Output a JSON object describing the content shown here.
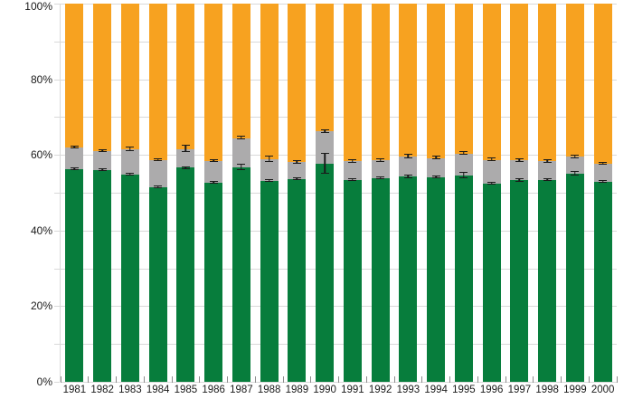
{
  "chart_data": {
    "type": "bar",
    "stacked": true,
    "title": "",
    "legend": "none",
    "grid": true,
    "categories": [
      "1981",
      "1982",
      "1983",
      "1984",
      "1985",
      "1986",
      "1987",
      "1988",
      "1989",
      "1990",
      "1991",
      "1992",
      "1993",
      "1994",
      "1995",
      "1996",
      "1997",
      "1998",
      "1999",
      "2000"
    ],
    "series": [
      {
        "name": "green",
        "color": "#077D3C",
        "values": [
          56.3,
          56.1,
          54.8,
          51.4,
          56.6,
          52.6,
          56.7,
          53.2,
          53.6,
          57.7,
          53.4,
          53.9,
          54.2,
          54.1,
          54.5,
          52.5,
          53.3,
          53.3,
          55.1,
          52.9
        ]
      },
      {
        "name": "grey",
        "color": "#ACABAC",
        "values": [
          5.7,
          4.9,
          6.6,
          7.2,
          5.0,
          5.7,
          7.7,
          5.6,
          4.5,
          8.5,
          4.9,
          4.6,
          5.4,
          5.0,
          5.9,
          6.2,
          5.2,
          5.0,
          4.4,
          4.8
        ]
      },
      {
        "name": "orange",
        "color": "#F7A220",
        "values": [
          38.0,
          39.0,
          38.6,
          41.4,
          38.4,
          41.7,
          35.6,
          41.2,
          41.9,
          33.8,
          41.7,
          41.5,
          40.4,
          40.9,
          39.6,
          41.3,
          41.5,
          41.7,
          40.5,
          42.3
        ]
      }
    ],
    "error_bars": [
      {
        "at": "green-top",
        "plus_minus": [
          0.5,
          0.4,
          0.4,
          0.5,
          0.3,
          0.5,
          1.0,
          0.3,
          0.4,
          2.8,
          0.4,
          0.5,
          0.5,
          0.5,
          1.0,
          0.4,
          0.6,
          0.5,
          0.7,
          0.4
        ]
      },
      {
        "at": "grey-top",
        "plus_minus": [
          0.5,
          0.5,
          0.7,
          0.5,
          1.0,
          0.5,
          0.6,
          1.0,
          0.6,
          0.6,
          0.6,
          0.7,
          0.8,
          0.6,
          0.6,
          0.6,
          0.7,
          0.6,
          0.6,
          0.5
        ]
      }
    ],
    "y_axis": {
      "unit": "%",
      "min": 0,
      "max": 100,
      "gridline_step": 10,
      "label_step": 20,
      "tick_labels": [
        "0%",
        "20%",
        "40%",
        "60%",
        "80%",
        "100%"
      ]
    },
    "x_axis": {
      "label": ""
    }
  },
  "colors": {
    "gridline": "#d9d9d9",
    "axis_text": "#1a1a1a",
    "error_bar": "#1a1a1a",
    "background": "#ffffff"
  }
}
